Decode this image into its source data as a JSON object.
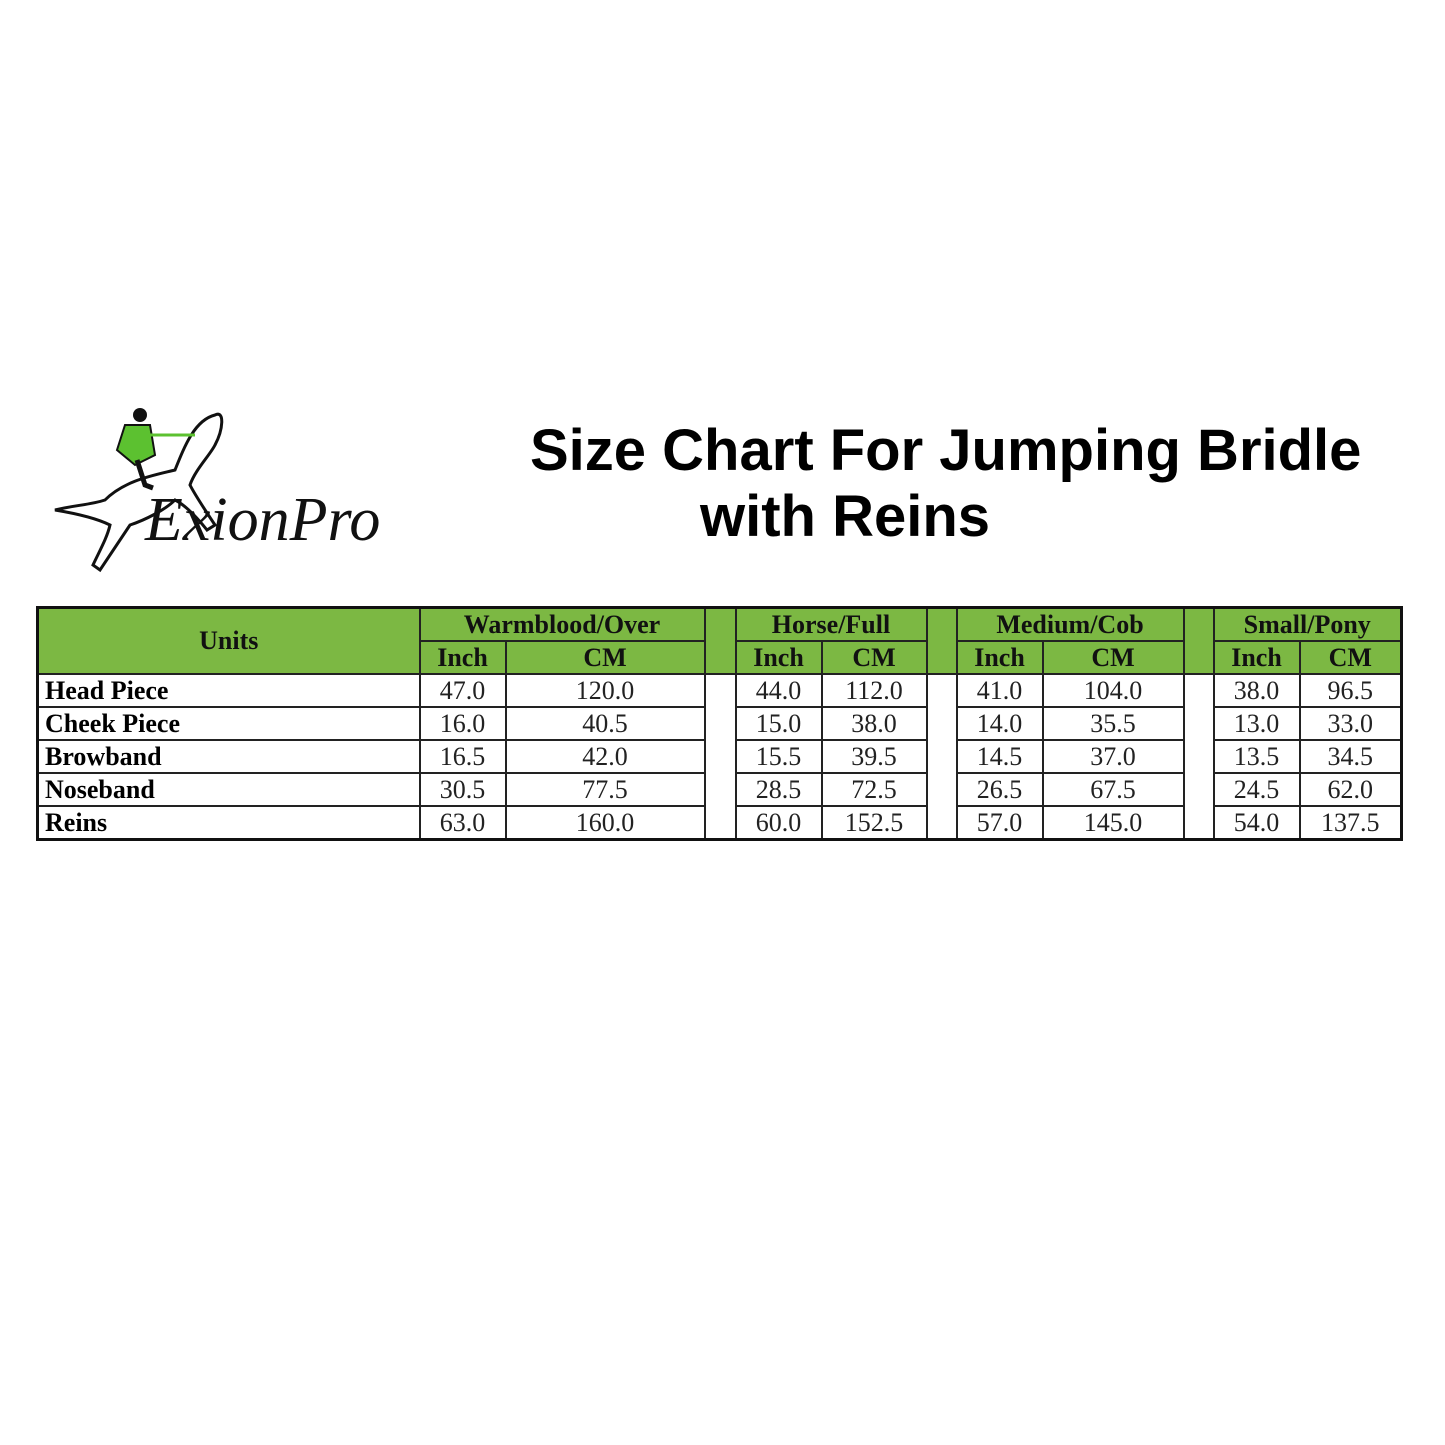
{
  "logo": {
    "text": "ExionPro",
    "accent_color": "#5cc130"
  },
  "title": {
    "line1": "Size Chart For Jumping Bridle",
    "line2": "with Reins"
  },
  "table": {
    "header_color": "#7cb843",
    "units_label": "Units",
    "groups": [
      "Warmblood/Over",
      "Horse/Full",
      "Medium/Cob",
      "Small/Pony"
    ],
    "subheaders": [
      "Inch",
      "CM"
    ],
    "rows": [
      {
        "label": "Head Piece",
        "values": [
          "47.0",
          "120.0",
          "44.0",
          "112.0",
          "41.0",
          "104.0",
          "38.0",
          "96.5"
        ]
      },
      {
        "label": "Cheek Piece",
        "values": [
          "16.0",
          "40.5",
          "15.0",
          "38.0",
          "14.0",
          "35.5",
          "13.0",
          "33.0"
        ]
      },
      {
        "label": "Browband",
        "values": [
          "16.5",
          "42.0",
          "15.5",
          "39.5",
          "14.5",
          "37.0",
          "13.5",
          "34.5"
        ]
      },
      {
        "label": "Noseband",
        "values": [
          "30.5",
          "77.5",
          "28.5",
          "72.5",
          "26.5",
          "67.5",
          "24.5",
          "62.0"
        ]
      },
      {
        "label": "Reins",
        "values": [
          "63.0",
          "160.0",
          "60.0",
          "152.5",
          "57.0",
          "145.0",
          "54.0",
          "137.5"
        ]
      }
    ]
  }
}
